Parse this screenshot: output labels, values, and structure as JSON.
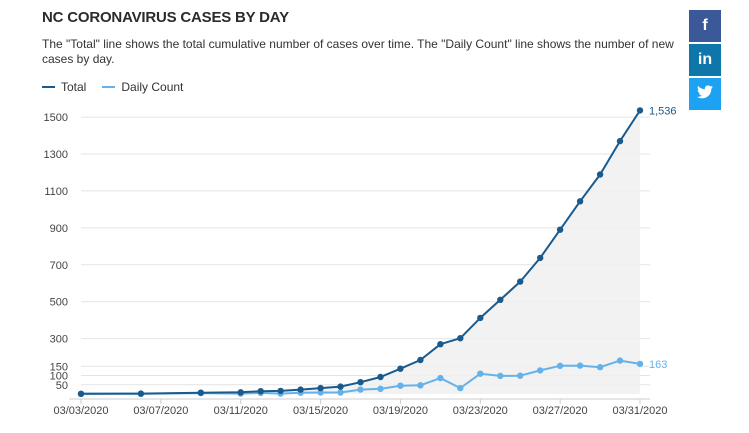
{
  "chart_data": {
    "type": "line",
    "title": "NC CORONAVIRUS CASES BY DAY",
    "subtitle": "The \"Total\" line shows the total cumulative number of cases over time. The \"Daily Count\" line shows the number of new cases by day.",
    "x": [
      "03/03/2020",
      "03/06/2020",
      "03/09/2020",
      "03/11/2020",
      "03/12/2020",
      "03/13/2020",
      "03/14/2020",
      "03/15/2020",
      "03/16/2020",
      "03/17/2020",
      "03/18/2020",
      "03/19/2020",
      "03/20/2020",
      "03/21/2020",
      "03/22/2020",
      "03/23/2020",
      "03/24/2020",
      "03/25/2020",
      "03/26/2020",
      "03/27/2020",
      "03/28/2020",
      "03/29/2020",
      "03/30/2020",
      "03/31/2020"
    ],
    "x_ticks": [
      "03/03/2020",
      "03/07/2020",
      "03/11/2020",
      "03/15/2020",
      "03/19/2020",
      "03/23/2020",
      "03/27/2020",
      "03/31/2020"
    ],
    "y_ticks": [
      50,
      100,
      150,
      300,
      500,
      700,
      900,
      1100,
      1300,
      1500
    ],
    "ylim": [
      0,
      1560
    ],
    "series": [
      {
        "name": "Total",
        "color": "#1a5a8c",
        "values": [
          1,
          2,
          7,
          9,
          15,
          17,
          24,
          32,
          40,
          64,
          92,
          137,
          184,
          270,
          302,
          412,
          510,
          609,
          737,
          890,
          1044,
          1189,
          1370,
          1536
        ],
        "end_label": "1,536",
        "area": true
      },
      {
        "name": "Daily Count",
        "color": "#66b2e8",
        "values": [
          1,
          1,
          5,
          2,
          6,
          2,
          7,
          8,
          8,
          24,
          28,
          45,
          47,
          86,
          32,
          110,
          98,
          99,
          128,
          153,
          154,
          145,
          181,
          163
        ],
        "end_label": "163",
        "area": false
      }
    ]
  },
  "social": {
    "facebook": {
      "glyph": "f",
      "color": "#3b5998"
    },
    "linkedin": {
      "glyph": "in",
      "color": "#0e76a8"
    },
    "twitter": {
      "glyph": "🐦",
      "color": "#1da1f2"
    }
  }
}
